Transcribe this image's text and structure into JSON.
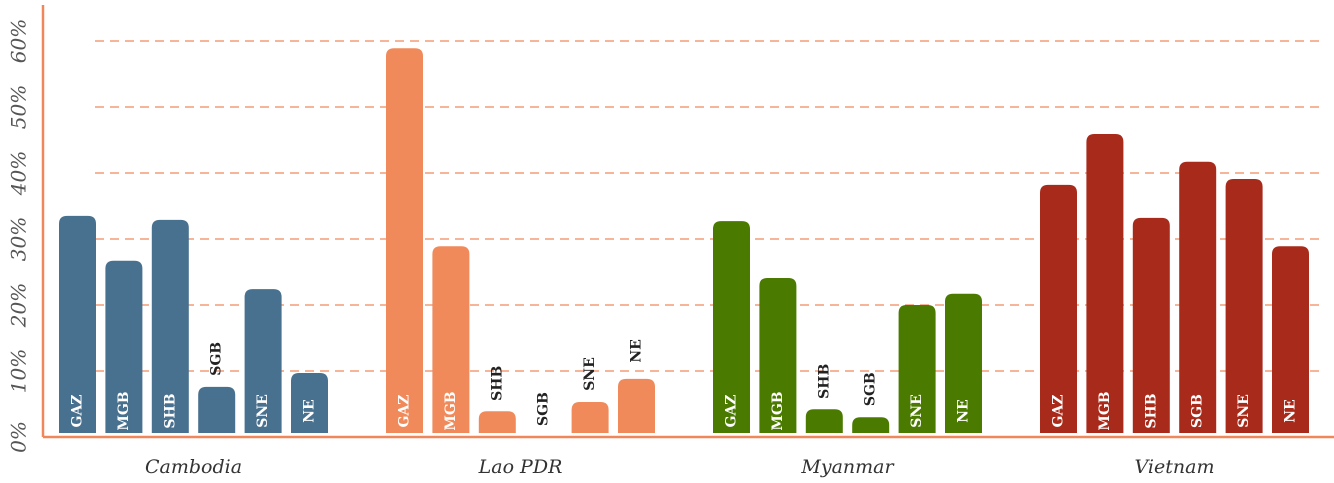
{
  "chart_data": {
    "type": "bar",
    "categories": [
      "Cambodia",
      "Lao PDR",
      "Myanmar",
      "Vietnam"
    ],
    "colors": [
      "#48708f",
      "#f08a5a",
      "#4a7a00",
      "#a82a1a"
    ],
    "series": [
      {
        "name": "GAZ",
        "values": [
          33.5,
          58.9,
          32.7,
          38.2
        ]
      },
      {
        "name": "MGB",
        "values": [
          26.7,
          28.9,
          24.1,
          45.9
        ]
      },
      {
        "name": "SHB",
        "values": [
          32.9,
          3.9,
          4.2,
          33.2
        ]
      },
      {
        "name": "SGB",
        "values": [
          7.6,
          0,
          3.0,
          41.7
        ]
      },
      {
        "name": "SNE",
        "values": [
          22.4,
          5.3,
          20.0,
          39.1
        ]
      },
      {
        "name": "NE",
        "values": [
          9.7,
          8.8,
          21.7,
          28.9
        ]
      }
    ],
    "ylim": [
      0,
      60
    ],
    "yticks": [
      {
        "value": 0,
        "label": "0%"
      },
      {
        "value": 10,
        "label": "10%"
      },
      {
        "value": 20,
        "label": "20%"
      },
      {
        "value": 30,
        "label": "30%"
      },
      {
        "value": 40,
        "label": "40%"
      },
      {
        "value": 50,
        "label": "50%"
      },
      {
        "value": 60,
        "label": "60%"
      }
    ],
    "grid": true,
    "grid_color": "#f0875a"
  }
}
